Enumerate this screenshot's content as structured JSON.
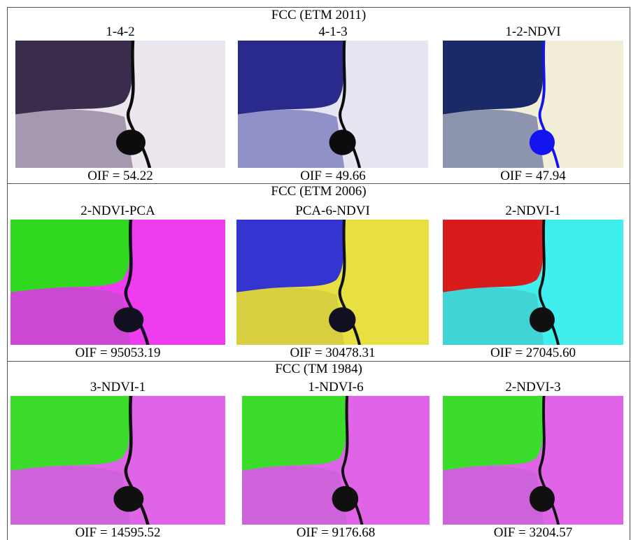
{
  "sections": [
    {
      "title": "FCC (ETM 2011)",
      "panels": [
        {
          "label": "1-4-2",
          "caption": "OIF = 54.22"
        },
        {
          "label": "4-1-3",
          "caption": "OIF = 49.66"
        },
        {
          "label": "1-2-NDVI",
          "caption": "OIF = 47.94"
        }
      ]
    },
    {
      "title": "FCC (ETM 2006)",
      "panels": [
        {
          "label": "2-NDVI-PCA",
          "caption": "OIF = 95053.19"
        },
        {
          "label": "PCA-6-NDVI",
          "caption": "OIF = 30478.31"
        },
        {
          "label": "2-NDVI-1",
          "caption": "OIF = 27045.60"
        }
      ]
    },
    {
      "title": "FCC (TM 1984)",
      "panels": [
        {
          "label": "3-NDVI-1",
          "caption": "OIF = 14595.52"
        },
        {
          "label": "1-NDVI-6",
          "caption": "OIF = 9176.68"
        },
        {
          "label": "2-NDVI-3",
          "caption": "OIF = 3204.57"
        }
      ]
    }
  ]
}
